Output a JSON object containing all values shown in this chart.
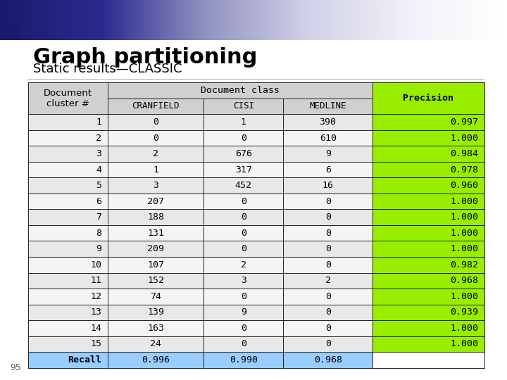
{
  "title": "Graph partitioning",
  "subtitle": "Static results—CLASSIC",
  "sub_columns": [
    "CRANFIELD",
    "CISI",
    "MEDLINE"
  ],
  "rows": [
    [
      1,
      0,
      1,
      390,
      0.997
    ],
    [
      2,
      0,
      0,
      610,
      1.0
    ],
    [
      3,
      2,
      676,
      9,
      0.984
    ],
    [
      4,
      1,
      317,
      6,
      0.978
    ],
    [
      5,
      3,
      452,
      16,
      0.96
    ],
    [
      6,
      207,
      0,
      0,
      1.0
    ],
    [
      7,
      188,
      0,
      0,
      1.0
    ],
    [
      8,
      131,
      0,
      0,
      1.0
    ],
    [
      9,
      209,
      0,
      0,
      1.0
    ],
    [
      10,
      107,
      2,
      0,
      0.982
    ],
    [
      11,
      152,
      3,
      2,
      0.968
    ],
    [
      12,
      74,
      0,
      0,
      1.0
    ],
    [
      13,
      139,
      9,
      0,
      0.939
    ],
    [
      14,
      163,
      0,
      0,
      1.0
    ],
    [
      15,
      24,
      0,
      0,
      1.0
    ]
  ],
  "recall_row": [
    "Recall",
    0.996,
    0.99,
    0.968
  ],
  "slide_bg": "#ffffff",
  "header_bg": "#d0d0d0",
  "precision_header_bg": "#99ee00",
  "precision_cell_bg": "#99ee00",
  "recall_bg": "#99ccff",
  "row_alt1_bg": "#e8e8e8",
  "row_alt2_bg": "#f4f4f4",
  "border_color": "#222222",
  "title_color": "#000000",
  "subtitle_color": "#000000",
  "page_num": "95",
  "title_fontsize": 22,
  "subtitle_fontsize": 13,
  "table_fontsize": 9.5,
  "header_strip_colors": [
    "#1a1a6e",
    "#2a2a8e",
    "#9090c0",
    "#d0d0e8",
    "#f0f0f8",
    "#ffffff"
  ],
  "blue_sq1": [
    0.015,
    0.895,
    0.022,
    0.04
  ],
  "blue_sq2": [
    0.01,
    0.93,
    0.018,
    0.022
  ]
}
